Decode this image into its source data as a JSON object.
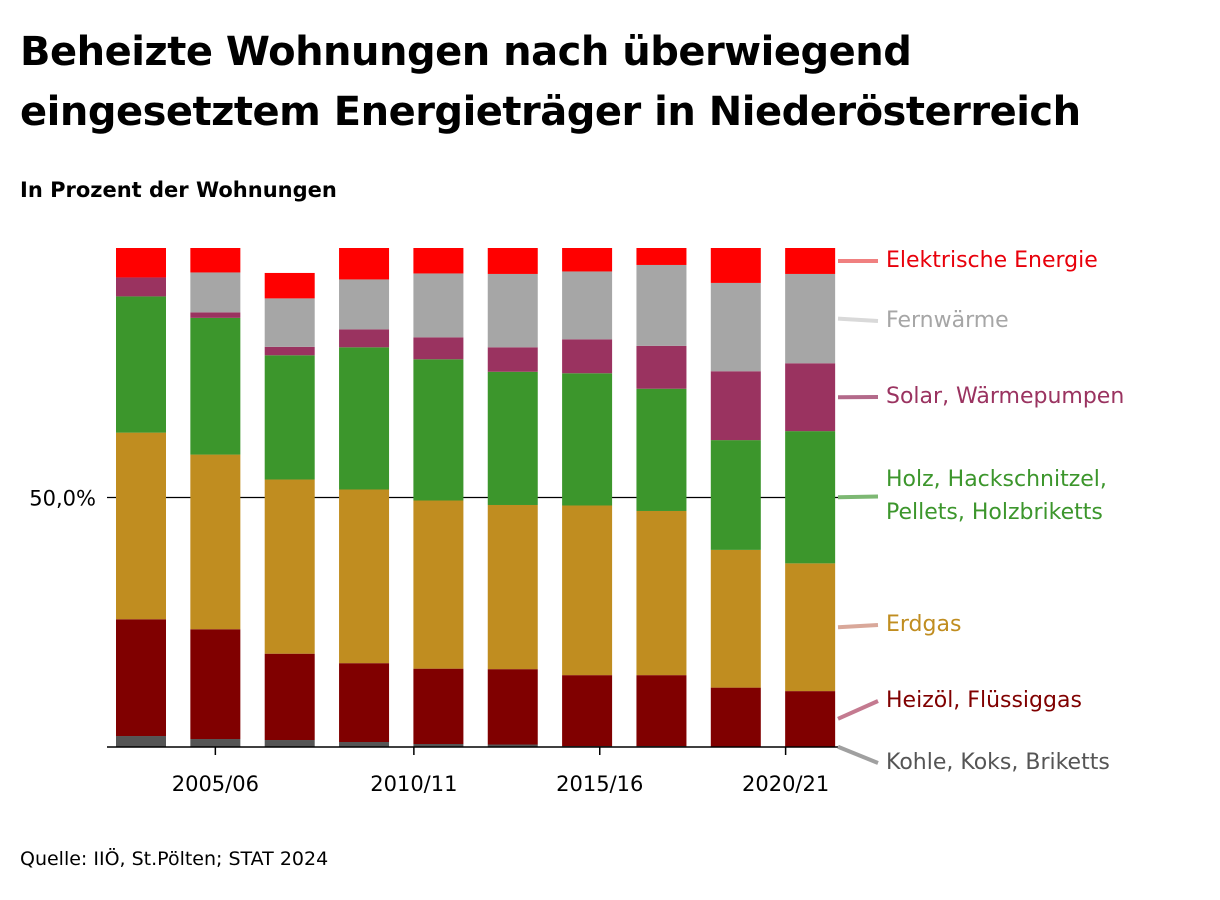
{
  "title": "Beheizte Wohnungen nach überwiegend eingesetztem Energieträger in Niederösterreich",
  "subtitle": "In Prozent der Wohnungen",
  "source": "Quelle: IIÖ, St.Pölten; STAT 2024",
  "chart_data": {
    "type": "bar",
    "stacked": true,
    "title": "Beheizte Wohnungen nach überwiegend eingesetztem Energieträger in Niederösterreich",
    "subtitle": "In Prozent der Wohnungen",
    "ylabel": "",
    "xlabel": "",
    "ylim": [
      0,
      100
    ],
    "y_ticks": [
      {
        "value": 50,
        "label": "50,0%"
      }
    ],
    "x_ticks": [
      {
        "index": 1,
        "label": "2005/06"
      },
      {
        "index": 3.67,
        "label": "2010/11"
      },
      {
        "index": 6.17,
        "label": "2015/16"
      },
      {
        "index": 8.67,
        "label": "2020/21"
      }
    ],
    "bar_count": 10,
    "legend_position": "right, labels aligned with top bar segments",
    "series": [
      {
        "name": "Kohle, Koks, Briketts",
        "color": "#555555",
        "values": [
          2.2,
          1.6,
          1.4,
          1.0,
          0.6,
          0.5,
          0.2,
          0.2,
          0.1,
          0.1
        ]
      },
      {
        "name": "Heizöl, Flüssiggas",
        "color": "#800000",
        "values": [
          23.4,
          22.0,
          17.3,
          15.8,
          15.1,
          15.1,
          14.2,
          14.2,
          11.8,
          11.1
        ]
      },
      {
        "name": "Erdgas",
        "color": "#C08D20",
        "values": [
          37.4,
          35.0,
          34.9,
          34.8,
          33.7,
          32.9,
          34.0,
          32.9,
          27.6,
          25.6
        ]
      },
      {
        "name": "Holz, Hackschnitzel, Pellets, Holzbriketts",
        "color": "#3C962C",
        "values": [
          27.3,
          27.4,
          24.9,
          28.5,
          28.3,
          26.7,
          26.5,
          24.5,
          22.0,
          26.5
        ]
      },
      {
        "name": "Solar, Wärmepumpen",
        "color": "#9A3360",
        "values": [
          3.8,
          1.1,
          1.7,
          3.6,
          4.4,
          4.9,
          6.8,
          8.6,
          13.8,
          13.6
        ]
      },
      {
        "name": "Fernwärme",
        "color": "#A6A6A6",
        "values": [
          0,
          8.0,
          9.7,
          10.0,
          12.8,
          14.7,
          13.6,
          16.2,
          17.7,
          17.9
        ]
      },
      {
        "name": "Elektrische Energie",
        "color": "#FF0000",
        "values": [
          5.9,
          4.9,
          5.1,
          6.3,
          5.1,
          5.2,
          4.7,
          3.4,
          7.0,
          5.2
        ]
      }
    ]
  }
}
